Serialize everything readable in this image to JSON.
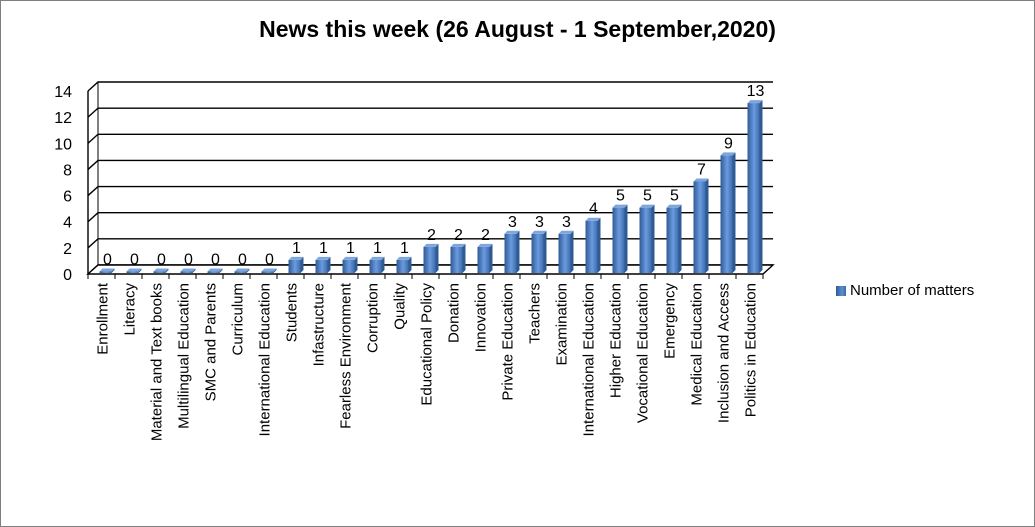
{
  "chart_data": {
    "type": "bar",
    "title": "News this week (26 August - 1 September,2020)",
    "categories": [
      "Enrollment",
      "Literacy",
      "Material and Text books",
      "Multilingual Education",
      "SMC and Parents",
      "Curriculum",
      "International Education",
      "Students",
      "Infastructure",
      "Fearless Environment",
      "Corruption",
      "Quality",
      "Educational Policy",
      "Donation",
      "Innovation",
      "Private Education",
      "Teachers",
      "Examination",
      "International Education",
      "Higher Education",
      "Vocational Education",
      "Emergency",
      "Medical Education",
      "Inclusion and Access",
      "Politics in Education"
    ],
    "series": [
      {
        "name": "Number of matters",
        "values": [
          0,
          0,
          0,
          0,
          0,
          0,
          0,
          1,
          1,
          1,
          1,
          1,
          2,
          2,
          2,
          3,
          3,
          3,
          4,
          5,
          5,
          5,
          7,
          9,
          13
        ]
      }
    ],
    "ylim": [
      0,
      14
    ],
    "yticks": [
      0,
      2,
      4,
      6,
      8,
      10,
      12,
      14
    ],
    "grid": true,
    "legend_position": "right",
    "colors": {
      "bar": "#4f81bd",
      "bar_dark": "#2f5b95",
      "bar_top": "#7ea6dc",
      "grid": "#000000"
    }
  }
}
